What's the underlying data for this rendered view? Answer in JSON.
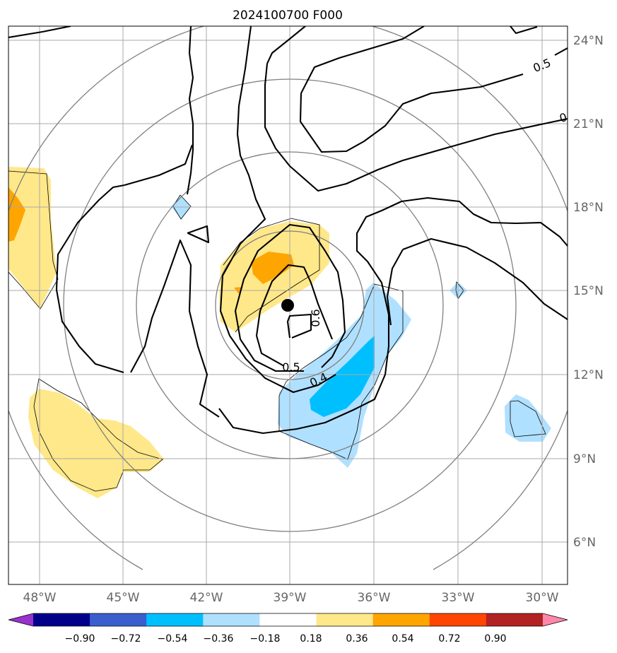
{
  "title": "2024100700 F000",
  "lon_ticks": [
    "48°W",
    "45°W",
    "42°W",
    "39°W",
    "36°W",
    "33°W",
    "30°W"
  ],
  "lat_ticks": [
    "24°N",
    "21°N",
    "18°N",
    "15°N",
    "12°N",
    "9°N",
    "6°N"
  ],
  "contour_labels": [
    "0.5",
    "0.6",
    "0.5",
    "0.4",
    "0"
  ],
  "colorbar": {
    "ticks": [
      "−0.90",
      "−0.72",
      "−0.54",
      "−0.36",
      "−0.18",
      "0.18",
      "0.36",
      "0.54",
      "0.72",
      "0.90"
    ],
    "colors": [
      "#9932CC",
      "#00008B",
      "#3A5FCD",
      "#00BFFF",
      "#B0E0FF",
      "#FFFFFF",
      "#FFE88A",
      "#FFA500",
      "#FF4500",
      "#B22222",
      "#FF88AA"
    ]
  },
  "colors": {
    "light_yellow": "#FFE88A",
    "orange": "#FFA500",
    "light_blue": "#B0E0FF",
    "deep_sky_blue": "#00BFFF",
    "grid": "#A8A8A8",
    "range_ring": "#808080",
    "contour": "#000000"
  },
  "center_marker": "storm-center"
}
